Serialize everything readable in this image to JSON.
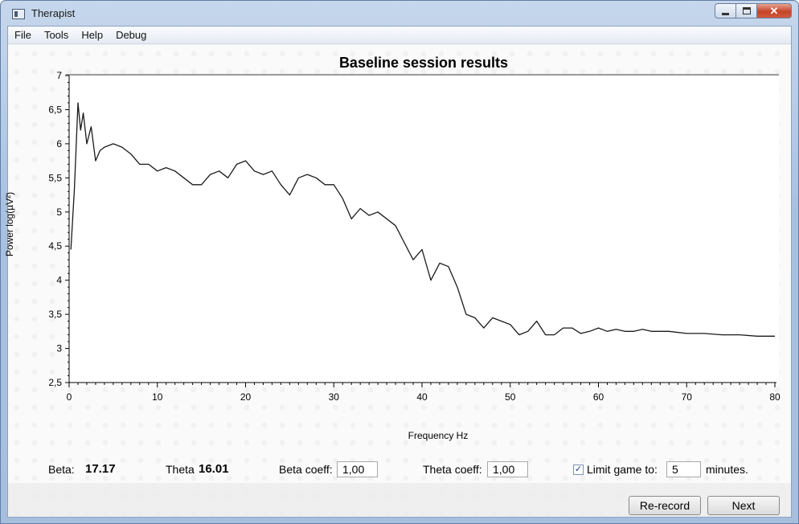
{
  "window": {
    "title": "Therapist",
    "controls": {
      "minimize": "minimize",
      "maximize": "maximize",
      "close": "✕"
    }
  },
  "menu": [
    "File",
    "Tools",
    "Help",
    "Debug"
  ],
  "chart_data": {
    "type": "line",
    "title": "Baseline session results",
    "xlabel": "Frequency Hz",
    "ylabel": "Power log(µV²)",
    "xlim": [
      0,
      80
    ],
    "ylim": [
      2.5,
      7
    ],
    "x_ticks": [
      0,
      10,
      20,
      30,
      40,
      50,
      60,
      70,
      80
    ],
    "y_ticks": [
      "2,5",
      "3",
      "3,5",
      "4",
      "4,5",
      "5",
      "5,5",
      "6",
      "6,5",
      "7"
    ],
    "y_tick_values": [
      2.5,
      3,
      3.5,
      4,
      4.5,
      5,
      5.5,
      6,
      6.5,
      7
    ],
    "grid": false,
    "series": [
      {
        "color": "#1a1a1a",
        "x": [
          0.2,
          0.6,
          1.0,
          1.3,
          1.6,
          2.0,
          2.5,
          3.0,
          3.5,
          4.0,
          5.0,
          6.0,
          7.0,
          8.0,
          9.0,
          10.0,
          11.0,
          12.0,
          13.0,
          14.0,
          15.0,
          16.0,
          17.0,
          18.0,
          19.0,
          20.0,
          21.0,
          22.0,
          23.0,
          24.0,
          25.0,
          26.0,
          27.0,
          28.0,
          29.0,
          30.0,
          31.0,
          32.0,
          33.0,
          34.0,
          35.0,
          36.0,
          37.0,
          38.0,
          39.0,
          40.0,
          41.0,
          42.0,
          43.0,
          44.0,
          45.0,
          46.0,
          47.0,
          48.0,
          49.0,
          50.0,
          51.0,
          52.0,
          53.0,
          54.0,
          55.0,
          56.0,
          57.0,
          58.0,
          59.0,
          60.0,
          61.0,
          62.0,
          63.0,
          64.0,
          65.0,
          66.0,
          68.0,
          70.0,
          72.0,
          74.0,
          76.0,
          78.0,
          80.0
        ],
        "y": [
          4.45,
          5.35,
          6.6,
          6.2,
          6.45,
          6.0,
          6.25,
          5.75,
          5.9,
          5.95,
          6.0,
          5.95,
          5.85,
          5.7,
          5.7,
          5.6,
          5.65,
          5.6,
          5.5,
          5.4,
          5.4,
          5.55,
          5.6,
          5.5,
          5.7,
          5.75,
          5.6,
          5.55,
          5.6,
          5.4,
          5.25,
          5.5,
          5.55,
          5.5,
          5.4,
          5.4,
          5.2,
          4.9,
          5.05,
          4.95,
          5.0,
          4.9,
          4.8,
          4.55,
          4.3,
          4.45,
          4.0,
          4.25,
          4.2,
          3.9,
          3.5,
          3.45,
          3.3,
          3.45,
          3.4,
          3.35,
          3.2,
          3.25,
          3.4,
          3.2,
          3.2,
          3.3,
          3.3,
          3.22,
          3.25,
          3.3,
          3.25,
          3.28,
          3.25,
          3.25,
          3.28,
          3.25,
          3.25,
          3.22,
          3.22,
          3.2,
          3.2,
          3.18,
          3.18
        ]
      }
    ]
  },
  "stats": {
    "beta_label": "Beta:",
    "beta_value": "17.17",
    "theta_label": "Theta",
    "theta_value": "16.01"
  },
  "controls": {
    "beta_coeff_label": "Beta coeff:",
    "beta_coeff_value": "1,00",
    "theta_coeff_label": "Theta coeff:",
    "theta_coeff_value": "1,00",
    "limit_checked": "✓",
    "limit_label": "Limit game to:",
    "limit_value": "5",
    "minutes_label": "minutes."
  },
  "buttons": {
    "rerecord": "Re-record",
    "next": "Next"
  }
}
